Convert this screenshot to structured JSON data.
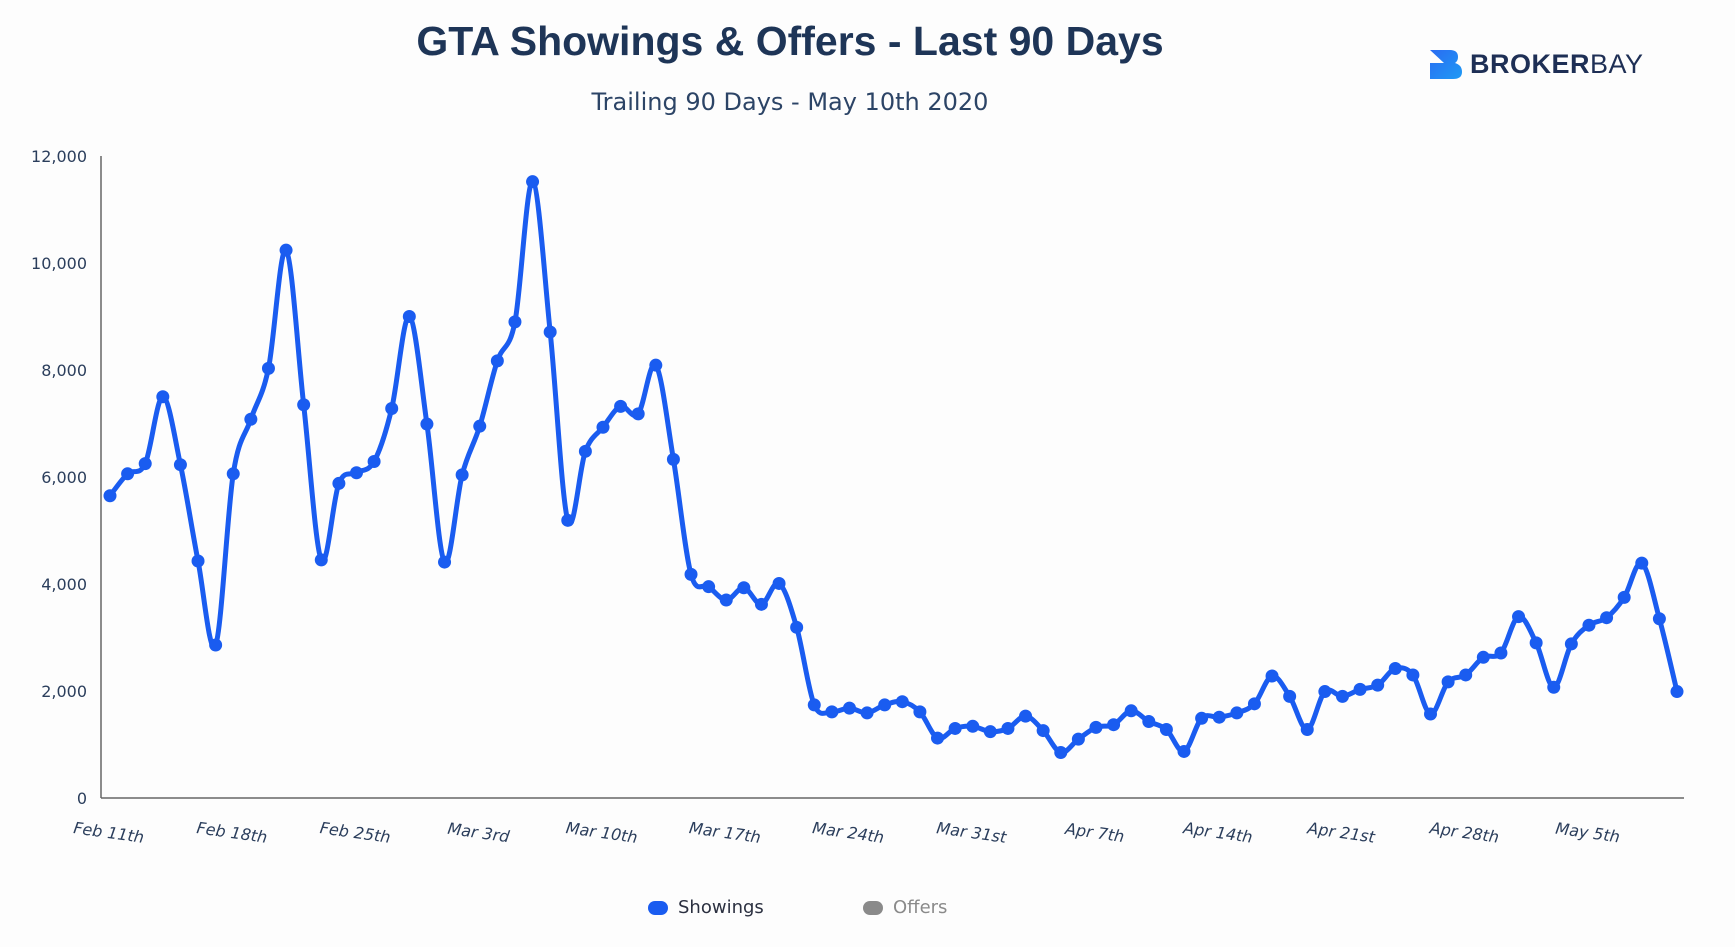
{
  "brand": {
    "word1": "BROKER",
    "word2": "BAY",
    "color": "#1f6cf0"
  },
  "chart_data": {
    "type": "line",
    "title": "GTA Showings & Offers - Last 90 Days",
    "subtitle": "Trailing 90 Days - May 10th 2020",
    "xlabel": "",
    "ylabel": "",
    "ylim": [
      0,
      12000
    ],
    "yticks": [
      0,
      2000,
      4000,
      6000,
      8000,
      10000,
      12000
    ],
    "ytick_labels": [
      "0",
      "2,000",
      "4,000",
      "6,000",
      "8,000",
      "10,000",
      "12,000"
    ],
    "xtick_labels": [
      "Feb 11th",
      "Feb 18th",
      "Feb 25th",
      "Mar 3rd",
      "Mar 10th",
      "Mar 17th",
      "Mar 24th",
      "Mar 31st",
      "Apr 7th",
      "Apr 14th",
      "Apr 21st",
      "Apr 28th",
      "May 5th"
    ],
    "xtick_every": 7,
    "grid": false,
    "legend_position": "bottom-center",
    "series": [
      {
        "name": "Showings",
        "color": "#1a5cf0",
        "values": [
          5650,
          6060,
          6250,
          7500,
          6230,
          4430,
          2860,
          6060,
          7080,
          8030,
          10240,
          7350,
          4450,
          5880,
          6080,
          6290,
          7280,
          9000,
          6990,
          4410,
          6040,
          6950,
          8170,
          8900,
          11520,
          8710,
          5190,
          6480,
          6930,
          7320,
          7180,
          8090,
          6330,
          4180,
          3950,
          3700,
          3930,
          3620,
          4010,
          3190,
          1740,
          1610,
          1680,
          1590,
          1740,
          1800,
          1610,
          1120,
          1300,
          1340,
          1240,
          1300,
          1530,
          1260,
          850,
          1100,
          1320,
          1370,
          1630,
          1430,
          1280,
          870,
          1490,
          1510,
          1590,
          1760,
          2280,
          1900,
          1280,
          1990,
          1900,
          2030,
          2110,
          2420,
          2300,
          1570,
          2170,
          2300,
          2630,
          2710,
          3390,
          2900,
          2070,
          2880,
          3230,
          3370,
          3750,
          4390,
          3350,
          1990
        ]
      },
      {
        "name": "Offers",
        "color": "#8a8a8a",
        "values": []
      }
    ]
  }
}
